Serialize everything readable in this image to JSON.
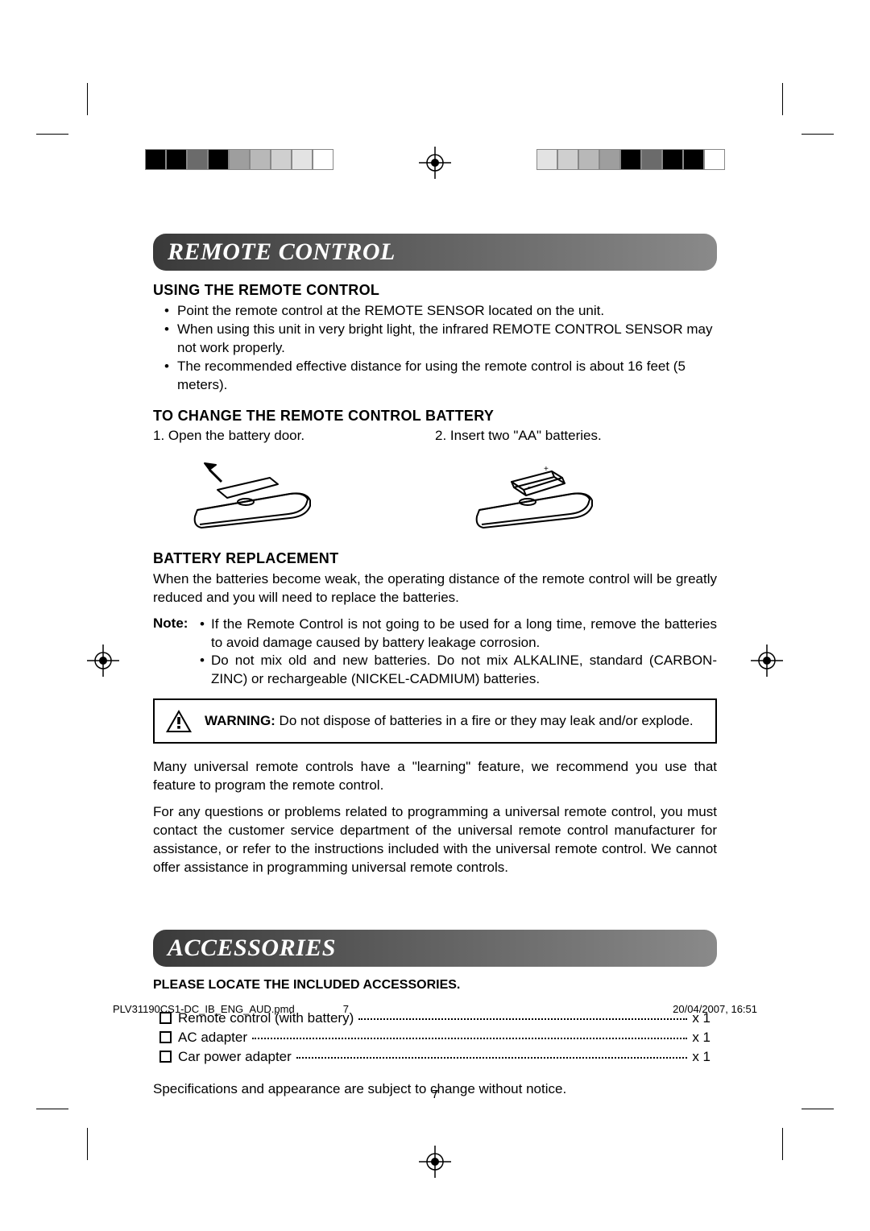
{
  "registration_bars": {
    "left_colors": [
      "#000000",
      "#000000",
      "#6b6b6b",
      "#000000",
      "#9e9e9e",
      "#b8b8b8",
      "#cfcfcf",
      "#e3e3e3",
      "#ffffff"
    ],
    "right_colors": [
      "#e3e3e3",
      "#cfcfcf",
      "#b8b8b8",
      "#9e9e9e",
      "#000000",
      "#6b6b6b",
      "#000000",
      "#000000",
      "#ffffff"
    ]
  },
  "sections": {
    "remote": {
      "title": "REMOTE CONTROL",
      "using": {
        "heading": "USING THE REMOTE CONTROL",
        "bullets": [
          "Point the remote control at the REMOTE SENSOR located on the unit.",
          "When using this unit in very bright light, the infrared REMOTE CONTROL SENSOR may not work properly.",
          "The recommended effective distance for using the remote control is about 16 feet (5 meters)."
        ]
      },
      "change_battery": {
        "heading": "TO CHANGE THE REMOTE CONTROL BATTERY",
        "step1": "1. Open the battery door.",
        "step2": "2. Insert two \"AA\" batteries."
      },
      "replacement": {
        "heading": "BATTERY REPLACEMENT",
        "intro": "When the batteries become weak, the operating distance of the remote control will be greatly reduced and you will need to replace the batteries.",
        "note_label": "Note:",
        "notes": [
          "If the Remote Control is not going to be used for a long time, remove the batteries to avoid damage caused by battery leakage corrosion.",
          "Do not mix old and new batteries. Do not mix ALKALINE, standard (CARBON-ZINC) or rechargeable (NICKEL-CADMIUM) batteries."
        ],
        "warning_label": "WARNING:",
        "warning_text": " Do not dispose of batteries in a fire or they may leak and/or explode.",
        "para1": "Many universal remote controls have a \"learning\" feature, we recommend you use that feature to program the remote control.",
        "para2": "For any questions or problems related to programming a universal remote control, you must contact the customer service department of the universal remote control manufacturer for assistance, or refer to the instructions included with the universal remote control. We cannot offer assistance in programming universal remote controls."
      }
    },
    "accessories": {
      "title": "ACCESSORIES",
      "intro": "PLEASE LOCATE THE INCLUDED ACCESSORIES.",
      "items": [
        {
          "label": "Remote control (with battery)",
          "qty": "x 1"
        },
        {
          "label": "AC adapter",
          "qty": "x 1"
        },
        {
          "label": "Car power adapter",
          "qty": "x 1"
        }
      ],
      "spec_note": "Specifications and appearance are subject to change without notice."
    }
  },
  "page_number": "7",
  "footer": {
    "filename": "PLV31190CS1-DC_IB_ENG_AUD.pmd",
    "page": "7",
    "datetime": "20/04/2007, 16:51"
  }
}
